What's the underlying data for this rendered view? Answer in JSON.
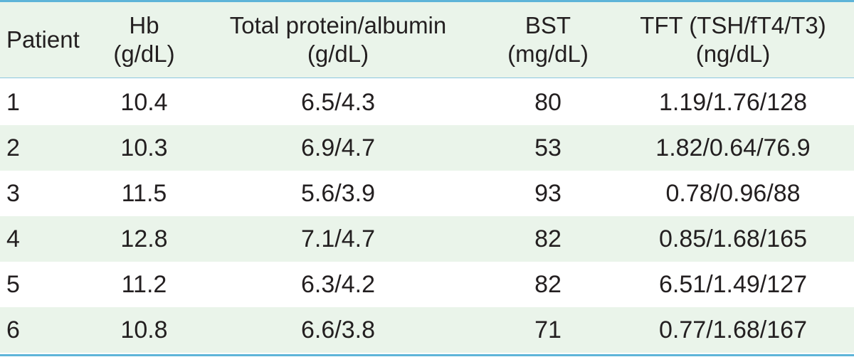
{
  "table": {
    "headers": [
      {
        "line1": "Patient",
        "line2": ""
      },
      {
        "line1": "Hb",
        "line2": "(g/dL)"
      },
      {
        "line1": "Total protein/albumin",
        "line2": "(g/dL)"
      },
      {
        "line1": "BST",
        "line2": "(mg/dL)"
      },
      {
        "line1": "TFT (TSH/fT4/T3)",
        "line2": "(ng/dL)"
      }
    ],
    "rows": [
      [
        "1",
        "10.4",
        "6.5/4.3",
        "80",
        "1.19/1.76/128"
      ],
      [
        "2",
        "10.3",
        "6.9/4.7",
        "53",
        "1.82/0.64/76.9"
      ],
      [
        "3",
        "11.5",
        "5.6/3.9",
        "93",
        "0.78/0.96/88"
      ],
      [
        "4",
        "12.8",
        "7.1/4.7",
        "82",
        "0.85/1.68/165"
      ],
      [
        "5",
        "11.2",
        "6.3/4.2",
        "82",
        "6.51/1.49/127"
      ],
      [
        "6",
        "10.8",
        "6.6/3.8",
        "71",
        "0.77/1.68/167"
      ]
    ]
  },
  "colors": {
    "rule": "#5eb4d8",
    "shade": "#eaf4ea",
    "text": "#231f20"
  }
}
